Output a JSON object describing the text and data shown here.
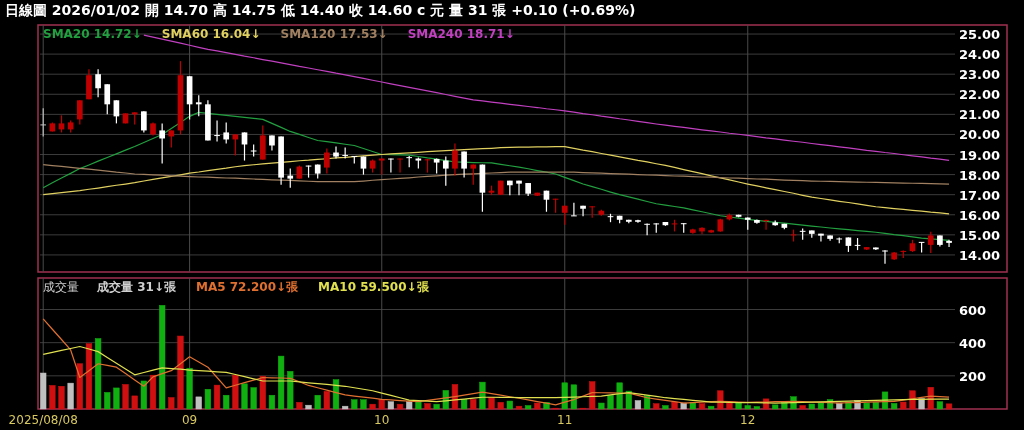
{
  "chart_data": [
    {
      "type": "candlestick",
      "title": "日線圖 2026/01/02 開 14.70 高 14.75 低 14.40 收 14.60 c 元 量 31 張 +0.10 (+0.69%)",
      "categories": [
        "2025/08/08",
        null,
        null,
        null,
        null,
        null,
        null,
        null,
        null,
        null,
        null,
        null,
        null,
        null,
        null,
        null,
        "09",
        null,
        null,
        null,
        null,
        null,
        null,
        null,
        null,
        null,
        null,
        null,
        null,
        null,
        null,
        null,
        null,
        null,
        null,
        null,
        null,
        "10",
        null,
        null,
        null,
        null,
        null,
        null,
        null,
        null,
        null,
        null,
        null,
        null,
        null,
        null,
        null,
        null,
        null,
        null,
        null,
        "11",
        null,
        null,
        null,
        null,
        null,
        null,
        null,
        null,
        null,
        null,
        null,
        null,
        null,
        null,
        null,
        null,
        null,
        null,
        null,
        "12",
        null,
        null,
        null,
        null,
        null,
        null,
        null,
        null,
        null,
        null,
        null,
        null,
        null,
        null,
        null,
        null,
        null,
        null,
        null,
        null,
        null,
        null
      ],
      "ohlc": [
        [
          20.5,
          21.3,
          19.9,
          20.5
        ],
        [
          20.15,
          20.6,
          20.15,
          20.55
        ],
        [
          20.25,
          20.95,
          20.1,
          20.55
        ],
        [
          20.25,
          20.7,
          20.1,
          20.6
        ],
        [
          20.75,
          21.7,
          20.5,
          21.7
        ],
        [
          21.75,
          23.25,
          21.75,
          22.95
        ],
        [
          23.0,
          23.25,
          21.85,
          22.3
        ],
        [
          22.5,
          22.5,
          21.0,
          21.5
        ],
        [
          21.7,
          21.7,
          20.55,
          20.9
        ],
        [
          20.55,
          21.05,
          20.55,
          21.05
        ],
        [
          21.0,
          21.1,
          20.5,
          21.1
        ],
        [
          21.15,
          21.15,
          20.1,
          20.2
        ],
        [
          20.0,
          20.6,
          19.95,
          20.55
        ],
        [
          20.2,
          20.55,
          18.55,
          19.8
        ],
        [
          19.9,
          20.2,
          19.35,
          20.2
        ],
        [
          20.2,
          23.65,
          20.0,
          22.95
        ],
        [
          22.9,
          22.9,
          20.75,
          21.5
        ],
        [
          21.6,
          21.95,
          20.9,
          21.5
        ],
        [
          21.5,
          21.7,
          19.7,
          19.7
        ],
        [
          19.97,
          20.7,
          19.65,
          19.93
        ],
        [
          20.1,
          20.6,
          19.55,
          19.75
        ],
        [
          19.75,
          20.0,
          18.95,
          20.0
        ],
        [
          20.1,
          20.1,
          18.7,
          19.5
        ],
        [
          19.2,
          19.5,
          18.9,
          19.15
        ],
        [
          18.75,
          20.45,
          18.75,
          19.95
        ],
        [
          19.95,
          19.95,
          19.2,
          19.45
        ],
        [
          19.9,
          19.9,
          17.5,
          17.85
        ],
        [
          17.95,
          18.3,
          17.35,
          17.8
        ],
        [
          17.8,
          18.45,
          17.8,
          18.4
        ],
        [
          18.45,
          18.45,
          17.85,
          18.4
        ],
        [
          18.5,
          18.5,
          17.8,
          18.05
        ],
        [
          18.35,
          19.3,
          18.05,
          19.1
        ],
        [
          19.1,
          19.4,
          18.8,
          18.9
        ],
        [
          18.98,
          19.35,
          18.8,
          18.95
        ],
        [
          18.93,
          18.93,
          18.55,
          18.9
        ],
        [
          18.9,
          18.9,
          18.0,
          18.3
        ],
        [
          18.3,
          18.75,
          18.1,
          18.7
        ],
        [
          18.7,
          18.8,
          18.0,
          18.8
        ],
        [
          18.8,
          18.8,
          18.1,
          18.78
        ],
        [
          18.75,
          18.8,
          18.1,
          18.8
        ],
        [
          18.87,
          18.93,
          18.37,
          18.83
        ],
        [
          18.8,
          18.85,
          18.3,
          18.7
        ],
        [
          18.72,
          18.78,
          18.1,
          18.76
        ],
        [
          18.78,
          18.8,
          18.05,
          18.6
        ],
        [
          18.7,
          18.9,
          17.45,
          18.3
        ],
        [
          18.3,
          19.55,
          17.95,
          19.2
        ],
        [
          19.15,
          19.15,
          17.85,
          18.3
        ],
        [
          18.3,
          18.5,
          17.5,
          18.5
        ],
        [
          18.5,
          18.5,
          16.15,
          17.1
        ],
        [
          17.1,
          17.45,
          16.98,
          17.2
        ],
        [
          17.0,
          17.7,
          16.98,
          17.7
        ],
        [
          17.7,
          17.7,
          16.97,
          17.47
        ],
        [
          17.7,
          17.7,
          16.97,
          17.55
        ],
        [
          17.58,
          17.58,
          16.93,
          17.05
        ],
        [
          16.95,
          17.1,
          16.93,
          17.1
        ],
        [
          17.2,
          17.2,
          16.15,
          16.75
        ],
        [
          16.75,
          16.8,
          16.1,
          16.8
        ],
        [
          16.1,
          16.45,
          15.5,
          16.45
        ],
        [
          15.97,
          16.6,
          15.95,
          15.95
        ],
        [
          16.45,
          16.45,
          15.92,
          16.3
        ],
        [
          16.4,
          16.43,
          15.85,
          16.42
        ],
        [
          16.0,
          16.25,
          15.95,
          16.2
        ],
        [
          15.93,
          16.05,
          15.63,
          15.92
        ],
        [
          15.95,
          15.95,
          15.58,
          15.75
        ],
        [
          15.75,
          15.75,
          15.58,
          15.65
        ],
        [
          15.73,
          15.75,
          15.6,
          15.65
        ],
        [
          15.55,
          15.56,
          14.98,
          15.53
        ],
        [
          15.57,
          15.58,
          15.1,
          15.55
        ],
        [
          15.64,
          15.64,
          15.45,
          15.48
        ],
        [
          15.53,
          15.75,
          15.17,
          15.57
        ],
        [
          15.58,
          15.58,
          15.1,
          15.55
        ],
        [
          15.1,
          15.3,
          15.05,
          15.27
        ],
        [
          15.17,
          15.38,
          15.03,
          15.35
        ],
        [
          15.12,
          15.25,
          15.1,
          15.23
        ],
        [
          15.17,
          15.8,
          15.15,
          15.77
        ],
        [
          15.77,
          16.06,
          15.72,
          15.98
        ],
        [
          16.0,
          16.0,
          15.88,
          15.9
        ],
        [
          15.86,
          15.86,
          15.26,
          15.75
        ],
        [
          15.74,
          15.76,
          15.55,
          15.6
        ],
        [
          15.71,
          15.76,
          15.26,
          15.74
        ],
        [
          15.62,
          15.72,
          15.45,
          15.48
        ],
        [
          15.55,
          15.55,
          15.28,
          15.35
        ],
        [
          15.0,
          15.26,
          14.67,
          15.02
        ],
        [
          15.2,
          15.31,
          14.75,
          15.17
        ],
        [
          15.22,
          15.22,
          14.85,
          15.05
        ],
        [
          15.06,
          15.06,
          14.67,
          14.96
        ],
        [
          14.97,
          14.97,
          14.7,
          14.8
        ],
        [
          14.82,
          14.87,
          14.58,
          14.8
        ],
        [
          14.87,
          14.87,
          14.15,
          14.45
        ],
        [
          14.5,
          14.84,
          14.24,
          14.48
        ],
        [
          14.27,
          14.4,
          14.25,
          14.39
        ],
        [
          14.37,
          14.37,
          14.25,
          14.28
        ],
        [
          14.22,
          14.23,
          13.56,
          14.2
        ],
        [
          13.78,
          14.14,
          13.75,
          14.12
        ],
        [
          14.18,
          14.22,
          13.85,
          14.2
        ],
        [
          14.19,
          14.75,
          14.15,
          14.58
        ],
        [
          14.65,
          14.65,
          14.12,
          14.62
        ],
        [
          14.5,
          15.15,
          14.1,
          14.97
        ],
        [
          14.97,
          14.97,
          14.42,
          14.5
        ],
        [
          14.7,
          14.75,
          14.4,
          14.6
        ]
      ],
      "colors": [
        "#c0c0c0",
        "#c00000",
        "#c00000",
        "#c00000",
        "#c00000",
        "#c00000",
        "#ffffff",
        "#ffffff",
        "#ffffff",
        "#c00000",
        "#c00000",
        "#ffffff",
        "#c00000",
        "#ffffff",
        "#c00000",
        "#c00000",
        "#ffffff",
        "#ffffff",
        "#ffffff",
        "#ffffff",
        "#ffffff",
        "#c00000",
        "#ffffff",
        "#ffffff",
        "#c00000",
        "#ffffff",
        "#ffffff",
        "#ffffff",
        "#c00000",
        "#ffffff",
        "#ffffff",
        "#c00000",
        "#ffffff",
        "#ffffff",
        "#ffffff",
        "#ffffff",
        "#c00000",
        "#c00000",
        "#ffffff",
        "#c00000",
        "#ffffff",
        "#ffffff",
        "#c00000",
        "#ffffff",
        "#ffffff",
        "#c00000",
        "#ffffff",
        "#c00000",
        "#ffffff",
        "#c00000",
        "#c00000",
        "#ffffff",
        "#ffffff",
        "#ffffff",
        "#c00000",
        "#ffffff",
        "#c00000",
        "#c00000",
        "#ffffff",
        "#ffffff",
        "#c00000",
        "#c00000",
        "#ffffff",
        "#ffffff",
        "#ffffff",
        "#ffffff",
        "#ffffff",
        "#ffffff",
        "#ffffff",
        "#c00000",
        "#ffffff",
        "#c00000",
        "#c00000",
        "#c00000",
        "#c00000",
        "#c00000",
        "#ffffff",
        "#ffffff",
        "#ffffff",
        "#c00000",
        "#ffffff",
        "#ffffff",
        "#c00000",
        "#ffffff",
        "#ffffff",
        "#ffffff",
        "#ffffff",
        "#ffffff",
        "#ffffff",
        "#ffffff",
        "#c00000",
        "#ffffff",
        "#ffffff",
        "#c00000",
        "#c00000",
        "#c00000",
        "#ffffff",
        "#c00000",
        "#ffffff",
        "#ffffff"
      ],
      "series": [
        {
          "name": "SMA20 14.72↓",
          "type": "line",
          "color": "#22a040",
          "values": [
            17.35,
            17.59,
            17.83,
            18.06,
            18.3,
            18.48,
            18.67,
            18.85,
            19.03,
            19.22,
            19.4,
            19.6,
            19.8,
            20.0,
            20.3,
            20.6,
            20.9,
            21.1,
            21.05,
            21.0,
            20.95,
            20.9,
            20.85,
            20.8,
            20.75,
            20.55,
            20.35,
            20.15,
            20.0,
            19.85,
            19.7,
            19.64,
            19.58,
            19.51,
            19.45,
            19.3,
            19.15,
            19.0,
            18.99,
            18.98,
            18.97,
            18.9,
            18.83,
            18.77,
            18.7,
            18.63,
            18.62,
            18.6,
            18.59,
            18.58,
            18.51,
            18.44,
            18.37,
            18.29,
            18.2,
            18.12,
            18.03,
            17.86,
            17.7,
            17.53,
            17.4,
            17.27,
            17.13,
            17.0,
            16.89,
            16.78,
            16.66,
            16.55,
            16.48,
            16.41,
            16.34,
            16.24,
            16.15,
            16.05,
            15.95,
            15.89,
            15.83,
            15.77,
            15.72,
            15.67,
            15.62,
            15.58,
            15.53,
            15.48,
            15.43,
            15.39,
            15.34,
            15.3,
            15.26,
            15.21,
            15.17,
            15.13,
            15.07,
            15.01,
            14.96,
            14.9,
            14.84,
            14.8,
            14.76,
            14.72
          ]
        },
        {
          "name": "SMA60 16.04↓",
          "type": "line",
          "color": "#e0d060",
          "values": [
            17.0,
            17.05,
            17.1,
            17.15,
            17.2,
            17.27,
            17.33,
            17.4,
            17.47,
            17.53,
            17.6,
            17.68,
            17.76,
            17.84,
            17.91,
            17.99,
            18.07,
            18.13,
            18.2,
            18.26,
            18.32,
            18.39,
            18.45,
            18.49,
            18.53,
            18.57,
            18.61,
            18.65,
            18.69,
            18.72,
            18.76,
            18.79,
            18.83,
            18.86,
            18.9,
            18.93,
            18.97,
            19.0,
            19.03,
            19.06,
            19.08,
            19.11,
            19.14,
            19.17,
            19.19,
            19.22,
            19.24,
            19.27,
            19.29,
            19.31,
            19.34,
            19.36,
            19.37,
            19.37,
            19.38,
            19.38,
            19.39,
            19.39,
            19.31,
            19.22,
            19.14,
            19.05,
            18.97,
            18.88,
            18.8,
            18.71,
            18.63,
            18.54,
            18.46,
            18.36,
            18.25,
            18.15,
            18.05,
            17.94,
            17.84,
            17.74,
            17.63,
            17.53,
            17.44,
            17.34,
            17.25,
            17.16,
            17.07,
            16.97,
            16.88,
            16.81,
            16.74,
            16.67,
            16.61,
            16.54,
            16.47,
            16.4,
            16.36,
            16.31,
            16.27,
            16.22,
            16.18,
            16.13,
            16.09,
            16.04
          ]
        },
        {
          "name": "SMA120 17.53↓",
          "type": "line",
          "color": "#a08060",
          "values": [
            18.5,
            18.45,
            18.41,
            18.36,
            18.31,
            18.27,
            18.22,
            18.17,
            18.12,
            18.08,
            18.03,
            18.01,
            17.99,
            17.97,
            17.94,
            17.92,
            17.9,
            17.88,
            17.87,
            17.85,
            17.83,
            17.82,
            17.8,
            17.78,
            17.76,
            17.74,
            17.73,
            17.71,
            17.69,
            17.67,
            17.65,
            17.65,
            17.65,
            17.65,
            17.65,
            17.68,
            17.72,
            17.75,
            17.78,
            17.81,
            17.84,
            17.88,
            17.91,
            17.94,
            17.97,
            18.0,
            18.02,
            18.04,
            18.06,
            18.08,
            18.1,
            18.12,
            18.12,
            18.12,
            18.12,
            18.12,
            18.12,
            18.12,
            18.12,
            18.1,
            18.09,
            18.07,
            18.05,
            18.04,
            18.02,
            18.0,
            17.98,
            17.97,
            17.95,
            17.93,
            17.92,
            17.9,
            17.88,
            17.87,
            17.85,
            17.83,
            17.82,
            17.8,
            17.78,
            17.77,
            17.75,
            17.73,
            17.71,
            17.7,
            17.68,
            17.67,
            17.66,
            17.65,
            17.64,
            17.63,
            17.62,
            17.61,
            17.6,
            17.59,
            17.58,
            17.57,
            17.56,
            17.55,
            17.54,
            17.53
          ]
        },
        {
          "name": "SMA240 18.71↓",
          "type": "line",
          "color": "#c040c0",
          "values": [
            null,
            null,
            null,
            null,
            null,
            null,
            null,
            null,
            null,
            null,
            null,
            24.95,
            24.85,
            24.75,
            24.65,
            24.55,
            24.44,
            24.34,
            24.24,
            24.16,
            24.07,
            23.99,
            23.9,
            23.82,
            23.73,
            23.65,
            23.56,
            23.48,
            23.39,
            23.31,
            23.22,
            23.14,
            23.05,
            22.97,
            22.88,
            22.79,
            22.7,
            22.61,
            22.52,
            22.43,
            22.34,
            22.26,
            22.17,
            22.08,
            21.99,
            21.9,
            21.81,
            21.72,
            21.67,
            21.61,
            21.56,
            21.5,
            21.45,
            21.39,
            21.34,
            21.28,
            21.23,
            21.17,
            21.11,
            21.04,
            20.98,
            20.91,
            20.85,
            20.78,
            20.72,
            20.65,
            20.59,
            20.52,
            20.46,
            20.4,
            20.35,
            20.29,
            20.23,
            20.18,
            20.12,
            20.06,
            20.01,
            19.95,
            19.89,
            19.83,
            19.78,
            19.72,
            19.66,
            19.61,
            19.55,
            19.49,
            19.44,
            19.38,
            19.33,
            19.27,
            19.21,
            19.16,
            19.1,
            19.05,
            18.99,
            18.93,
            18.88,
            18.82,
            18.77,
            18.71
          ]
        }
      ],
      "ylim": [
        13.15,
        25.45
      ],
      "yticks": [
        {
          "value": 14,
          "label": "14.00"
        },
        {
          "value": 15,
          "label": "15.00"
        },
        {
          "value": 16,
          "label": "16.00"
        },
        {
          "value": 17,
          "label": "17.00"
        },
        {
          "value": 18,
          "label": "18.00"
        },
        {
          "value": 19,
          "label": "19.00"
        },
        {
          "value": 20,
          "label": "20.00"
        },
        {
          "value": 21,
          "label": "21.00"
        },
        {
          "value": 22,
          "label": "22.00"
        },
        {
          "value": 23,
          "label": "23.00"
        },
        {
          "value": 24,
          "label": "24.00"
        },
        {
          "value": 25,
          "label": "25.00"
        }
      ],
      "grid": true,
      "legend": "top left",
      "tick_labels": "y"
    },
    {
      "type": "bar",
      "title": "成交量",
      "categories": [
        "2025/08/08",
        null,
        null,
        null,
        null,
        null,
        null,
        null,
        null,
        null,
        null,
        null,
        null,
        null,
        null,
        null,
        "09",
        null,
        null,
        null,
        null,
        null,
        null,
        null,
        null,
        null,
        null,
        null,
        null,
        null,
        null,
        null,
        null,
        null,
        null,
        null,
        null,
        "10",
        null,
        null,
        null,
        null,
        null,
        null,
        null,
        null,
        null,
        null,
        null,
        null,
        null,
        null,
        null,
        null,
        null,
        null,
        null,
        "11",
        null,
        null,
        null,
        null,
        null,
        null,
        null,
        null,
        null,
        null,
        null,
        null,
        null,
        null,
        null,
        null,
        null,
        null,
        null,
        "12",
        null,
        null,
        null,
        null,
        null,
        null,
        null,
        null,
        null,
        null,
        null,
        null,
        null,
        null,
        null,
        null,
        null,
        null,
        null,
        null,
        null,
        null
      ],
      "series": [
        {
          "name": "成交量 31↓張",
          "colors": [
            "#c0c0c0",
            "#d01010",
            "#d01010",
            "#c0c0c0",
            "#d01010",
            "#d01010",
            "#10b010",
            "#10b010",
            "#10b010",
            "#d01010",
            "#d01010",
            "#10b010",
            "#d01010",
            "#10b010",
            "#d01010",
            "#d01010",
            "#10b010",
            "#c0c0c0",
            "#10b010",
            "#d01010",
            "#10b010",
            "#d01010",
            "#10b010",
            "#10b010",
            "#d01010",
            "#10b010",
            "#10b010",
            "#10b010",
            "#d01010",
            "#c0c0c0",
            "#10b010",
            "#d01010",
            "#10b010",
            "#c0c0c0",
            "#10b010",
            "#10b010",
            "#d01010",
            "#d01010",
            "#c0c0c0",
            "#d01010",
            "#c0c0c0",
            "#10b010",
            "#d01010",
            "#10b010",
            "#10b010",
            "#d01010",
            "#10b010",
            "#d01010",
            "#10b010",
            "#d01010",
            "#d01010",
            "#10b010",
            "#d01010",
            "#10b010",
            "#d01010",
            "#10b010",
            "#d01010",
            "#10b010",
            "#10b010",
            "#d01010",
            "#d01010",
            "#10b010",
            "#10b010",
            "#10b010",
            "#10b010",
            "#c0c0c0",
            "#10b010",
            "#d01010",
            "#10b010",
            "#d01010",
            "#c0c0c0",
            "#10b010",
            "#d01010",
            "#10b010",
            "#d01010",
            "#d01010",
            "#10b010",
            "#10b010",
            "#10b010",
            "#d01010",
            "#10b010",
            "#10b010",
            "#10b010",
            "#d01010",
            "#10b010",
            "#10b010",
            "#10b010",
            "#c0c0c0",
            "#10b010",
            "#c0c0c0",
            "#10b010",
            "#10b010",
            "#10b010",
            "#10b010",
            "#d01010",
            "#d01010",
            "#c0c0c0",
            "#d01010",
            "#10b010",
            "#d01010"
          ],
          "values": [
            217,
            142,
            137,
            156,
            273,
            394,
            425,
            100,
            127,
            148,
            79,
            169,
            204,
            625,
            69,
            440,
            246,
            73,
            119,
            144,
            83,
            204,
            152,
            129,
            198,
            83,
            319,
            227,
            40,
            23,
            83,
            106,
            177,
            17,
            56,
            56,
            29,
            58,
            44,
            29,
            44,
            44,
            33,
            29,
            112,
            148,
            58,
            58,
            162,
            71,
            40,
            48,
            17,
            21,
            36,
            40,
            5,
            158,
            146,
            5,
            165,
            36,
            82,
            158,
            108,
            51,
            80,
            32,
            21,
            42,
            36,
            38,
            32,
            17,
            110,
            36,
            38,
            21,
            15,
            61,
            25,
            40,
            74,
            21,
            30,
            36,
            57,
            36,
            42,
            51,
            36,
            40,
            103,
            34,
            42,
            110,
            63,
            131,
            44,
            31
          ]
        },
        {
          "name": "MA5 72.200↓張",
          "type": "line",
          "color": "#e07030",
          "values": [
            544,
            481,
            419,
            356,
            190,
            231,
            273,
            263,
            252,
            214,
            175,
            137,
            194,
            213,
            231,
            273,
            315,
            284,
            252,
            190,
            127,
            143,
            159,
            174,
            190,
            188,
            187,
            185,
            164,
            142,
            128,
            114,
            99,
            85,
            78,
            72,
            65,
            58,
            55,
            51,
            48,
            44,
            52,
            60,
            67,
            75,
            84,
            93,
            102,
            93,
            84,
            74,
            65,
            55,
            45,
            35,
            25,
            41,
            57,
            78,
            99,
            98,
            97,
            96,
            95,
            82,
            68,
            60,
            52,
            44,
            36,
            39,
            41,
            44,
            46,
            44,
            42,
            40,
            41,
            42,
            44,
            45,
            46,
            44,
            42,
            40,
            38,
            36,
            38,
            39,
            41,
            43,
            44,
            46,
            54,
            62,
            70,
            78,
            75,
            72
          ]
        },
        {
          "name": "MA10 59.500↓張",
          "type": "line",
          "color": "#e0e050",
          "values": [
            329,
            341,
            353,
            365,
            377,
            362,
            346,
            311,
            276,
            241,
            206,
            220,
            234,
            248,
            244,
            240,
            235,
            231,
            228,
            224,
            221,
            208,
            195,
            182,
            169,
            169,
            169,
            169,
            164,
            158,
            153,
            148,
            142,
            137,
            128,
            119,
            110,
            96,
            82,
            68,
            54,
            51,
            47,
            44,
            49,
            55,
            60,
            66,
            71,
            71,
            70,
            70,
            69,
            69,
            69,
            68,
            68,
            70,
            72,
            74,
            76,
            78,
            85,
            92,
            99,
            91,
            84,
            76,
            68,
            63,
            58,
            52,
            47,
            42,
            41,
            40,
            39,
            39,
            38,
            37,
            36,
            37,
            39,
            40,
            42,
            43,
            45,
            46,
            48,
            49,
            51,
            52,
            54,
            55,
            57,
            58,
            58,
            59,
            60,
            60
          ]
        }
      ],
      "ylim": [
        0,
        790
      ],
      "yticks": [
        200,
        400,
        600
      ],
      "grid": true,
      "legend": "top left"
    }
  ]
}
